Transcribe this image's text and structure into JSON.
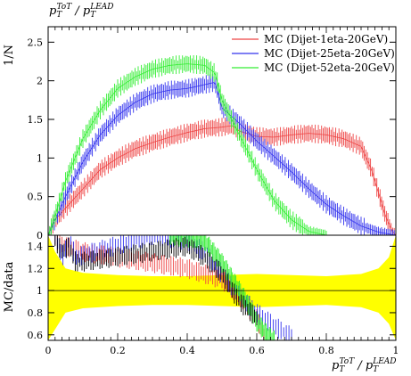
{
  "chart_data": [
    {
      "type": "line",
      "title": "",
      "title_top": {
        "main": "p",
        "sub": "T",
        "sup": "ToT",
        "sep": " / ",
        "main2": "p",
        "sub2": "T",
        "sup2": "LEAD"
      },
      "ylabel": "1/N",
      "xlim": [
        0,
        1
      ],
      "ylim": [
        0,
        2.7
      ],
      "yticks": [
        0,
        0.5,
        1,
        1.5,
        2,
        2.5
      ],
      "legend_position": "top-right",
      "colors": {
        "red": "#ee4444",
        "blue": "#3333ee",
        "green": "#33ee33",
        "dark": "#000000"
      },
      "series": [
        {
          "name": "MC (Dijet-1eta-20GeV)",
          "color": "#ee4444",
          "x": [
            0,
            0.01,
            0.02,
            0.05,
            0.1,
            0.15,
            0.2,
            0.25,
            0.3,
            0.35,
            0.4,
            0.45,
            0.5,
            0.53,
            0.55,
            0.6,
            0.65,
            0.7,
            0.75,
            0.8,
            0.85,
            0.9,
            0.93,
            0.95,
            0.97,
            0.99,
            1.0
          ],
          "y": [
            0,
            0.1,
            0.2,
            0.35,
            0.6,
            0.85,
            1.0,
            1.12,
            1.2,
            1.27,
            1.33,
            1.38,
            1.4,
            1.42,
            1.35,
            1.28,
            1.27,
            1.3,
            1.32,
            1.3,
            1.25,
            1.15,
            0.85,
            0.55,
            0.25,
            0.05,
            0
          ]
        },
        {
          "name": "MC (Dijet-25eta-20GeV)",
          "color": "#3333ee",
          "x": [
            0,
            0.02,
            0.05,
            0.1,
            0.15,
            0.2,
            0.25,
            0.3,
            0.35,
            0.4,
            0.45,
            0.48,
            0.5,
            0.55,
            0.6,
            0.65,
            0.7,
            0.75,
            0.8,
            0.85,
            0.9,
            0.95,
            1.0
          ],
          "y": [
            0,
            0.2,
            0.5,
            0.95,
            1.3,
            1.55,
            1.72,
            1.83,
            1.88,
            1.9,
            1.95,
            1.98,
            1.65,
            1.45,
            1.22,
            1.02,
            0.82,
            0.6,
            0.4,
            0.25,
            0.12,
            0.04,
            0
          ]
        },
        {
          "name": "MC (Dijet-52eta-20GeV)",
          "color": "#33ee33",
          "x": [
            0,
            0.02,
            0.05,
            0.1,
            0.15,
            0.2,
            0.25,
            0.3,
            0.35,
            0.4,
            0.45,
            0.48,
            0.5,
            0.55,
            0.6,
            0.65,
            0.7,
            0.75,
            0.8
          ],
          "y": [
            0,
            0.25,
            0.7,
            1.25,
            1.62,
            1.9,
            2.05,
            2.15,
            2.2,
            2.22,
            2.2,
            2.1,
            1.75,
            1.3,
            0.85,
            0.45,
            0.2,
            0.05,
            0
          ]
        }
      ]
    },
    {
      "type": "line",
      "title": "",
      "ylabel": "MC/data",
      "xlabel": {
        "main": "p",
        "sub": "T",
        "sup": "ToT",
        "sep": " / ",
        "main2": "p",
        "sub2": "T",
        "sup2": "LEAD"
      },
      "xlim": [
        0,
        1
      ],
      "ylim": [
        0.55,
        1.5
      ],
      "xticks": [
        0,
        0.2,
        0.4,
        0.6,
        0.8,
        1
      ],
      "yticks": [
        0.6,
        0.8,
        1,
        1.2,
        1.4
      ],
      "reference_line": 1,
      "band": {
        "color": "#ffff00",
        "x": [
          0,
          0.02,
          0.05,
          0.1,
          0.2,
          0.3,
          0.4,
          0.5,
          0.6,
          0.7,
          0.8,
          0.9,
          0.95,
          0.98,
          1.0
        ],
        "low": [
          0.55,
          0.65,
          0.8,
          0.84,
          0.86,
          0.87,
          0.87,
          0.86,
          0.85,
          0.86,
          0.87,
          0.85,
          0.8,
          0.7,
          0.55
        ],
        "high": [
          1.5,
          1.35,
          1.2,
          1.16,
          1.14,
          1.13,
          1.13,
          1.14,
          1.15,
          1.14,
          1.13,
          1.15,
          1.2,
          1.3,
          1.5
        ]
      },
      "series": [
        {
          "name": "MC (Dijet-1eta-20GeV)",
          "color": "#ee4444",
          "x": [
            0.02,
            0.05,
            0.1,
            0.2,
            0.3,
            0.4,
            0.5,
            0.55,
            0.6,
            0.62
          ],
          "y": [
            1.45,
            1.4,
            1.35,
            1.3,
            1.25,
            1.2,
            1.1,
            0.95,
            0.75,
            0.6
          ]
        },
        {
          "name": "MC (Dijet-25eta-20GeV)",
          "color": "#3333ee",
          "x": [
            0.02,
            0.04,
            0.06,
            0.08,
            0.3,
            0.4,
            0.45,
            0.5,
            0.55,
            0.6,
            0.65,
            0.7
          ],
          "y": [
            1.5,
            1.3,
            1.45,
            1.3,
            1.5,
            1.45,
            1.35,
            1.15,
            0.95,
            0.8,
            0.68,
            0.58
          ]
        },
        {
          "name": "MC (Dijet-52eta-20GeV)",
          "color": "#33ee33",
          "x": [
            0.35,
            0.45,
            0.5,
            0.55,
            0.58,
            0.6,
            0.63,
            0.65
          ],
          "y": [
            1.5,
            1.45,
            1.25,
            1.0,
            0.85,
            0.72,
            0.6,
            0.55
          ]
        },
        {
          "name": "black",
          "color": "#000000",
          "x": [
            0.02,
            0.04,
            0.06,
            0.08,
            0.4,
            0.45,
            0.5,
            0.55,
            0.6
          ],
          "y": [
            1.45,
            1.35,
            1.4,
            1.25,
            1.4,
            1.3,
            1.15,
            0.9,
            0.75
          ]
        }
      ]
    }
  ]
}
